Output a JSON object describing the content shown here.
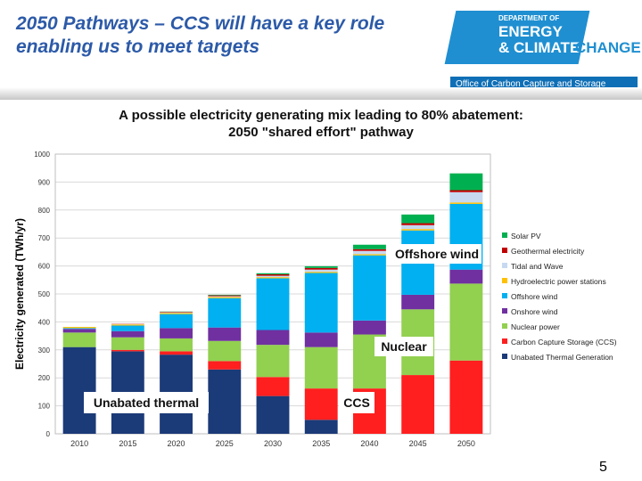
{
  "slide": {
    "title": "2050 Pathways – CCS will have a key role enabling us to meet targets",
    "page_number": "5"
  },
  "logo": {
    "dept": "DEPARTMENT OF",
    "energy": "ENERGY",
    "climate": "& CLIMATE",
    "change": "CHANGE",
    "office": "Office of Carbon Capture and Storage"
  },
  "chart_data": {
    "type": "bar",
    "stacked": true,
    "title_line1": "A possible electricity generating mix leading to 80% abatement:",
    "title_line2": "2050 \"shared effort\" pathway",
    "ylabel": "Electricity generated (TWh/yr)",
    "xlabel": "",
    "ylim": [
      0,
      1000
    ],
    "yticks": [
      0,
      100,
      200,
      300,
      400,
      500,
      600,
      700,
      800,
      900,
      1000
    ],
    "grid": true,
    "legend_position": "right",
    "categories": [
      "2010",
      "2015",
      "2020",
      "2025",
      "2030",
      "2035",
      "2040",
      "2045",
      "2050"
    ],
    "series": [
      {
        "name": "Unabated Thermal Generation",
        "color": "#1b3a78",
        "values": [
          310,
          295,
          283,
          230,
          135,
          50,
          0,
          0,
          0
        ]
      },
      {
        "name": "Carbon Capture Storage (CCS)",
        "color": "#ff1f1f",
        "values": [
          0,
          5,
          12,
          30,
          68,
          112,
          162,
          210,
          262
        ]
      },
      {
        "name": "Nuclear power",
        "color": "#92d050",
        "values": [
          52,
          45,
          46,
          72,
          115,
          148,
          193,
          235,
          275
        ]
      },
      {
        "name": "Onshore wind",
        "color": "#7030a0",
        "values": [
          13,
          22,
          37,
          48,
          53,
          52,
          50,
          52,
          50
        ]
      },
      {
        "name": "Offshore wind",
        "color": "#00b0f0",
        "values": [
          3,
          20,
          50,
          105,
          185,
          213,
          233,
          230,
          235
        ]
      },
      {
        "name": "Hydroelectric power stations",
        "color": "#ffc000",
        "values": [
          4,
          4,
          4,
          4,
          4,
          4,
          4,
          5,
          5
        ]
      },
      {
        "name": "Tidal and Wave",
        "color": "#c6d9f1",
        "values": [
          0,
          1,
          2,
          3,
          5,
          8,
          12,
          14,
          37
        ]
      },
      {
        "name": "Geothermal electricity",
        "color": "#c00000",
        "values": [
          0,
          1,
          2,
          3,
          5,
          6,
          6,
          7,
          7
        ]
      },
      {
        "name": "Solar PV",
        "color": "#00b050",
        "values": [
          0,
          0,
          1,
          2,
          4,
          6,
          16,
          31,
          60
        ]
      }
    ],
    "annotations": [
      "Offshore wind",
      "Nuclear",
      "Unabated thermal",
      "CCS"
    ]
  }
}
